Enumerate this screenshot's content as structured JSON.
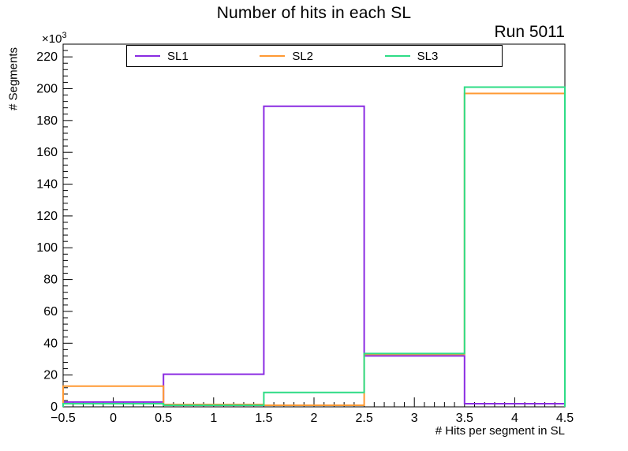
{
  "annotation": "Run 5011",
  "y_scale": {
    "prefix": "×10",
    "exponent": "3"
  },
  "chart_data": {
    "type": "histogram-step",
    "title": "Number of hits in each SL",
    "xlabel": "# Hits per segment in SL",
    "ylabel": "# Segments",
    "y_unit": "×10³ segments",
    "xlim": [
      -0.5,
      4.5
    ],
    "ylim": [
      0,
      228
    ],
    "grid": false,
    "legend_position": "top",
    "bin_edges": [
      -0.5,
      0.5,
      1.5,
      2.5,
      3.5,
      4.5
    ],
    "bin_centers": [
      0,
      1,
      2,
      3,
      4
    ],
    "x_ticks": [
      -0.5,
      0,
      0.5,
      1,
      1.5,
      2,
      2.5,
      3,
      3.5,
      4,
      4.5
    ],
    "y_ticks": [
      0,
      20,
      40,
      60,
      80,
      100,
      120,
      140,
      160,
      180,
      200,
      220
    ],
    "y_values_unit_multiplier": 1000,
    "series": [
      {
        "name": "SL1",
        "color": "#8a2be2",
        "values": [
          3,
          20.5,
          189,
          32,
          2
        ]
      },
      {
        "name": "SL2",
        "color": "#ff9933",
        "values": [
          13,
          1.5,
          1,
          33,
          197
        ]
      },
      {
        "name": "SL3",
        "color": "#2edc86",
        "values": [
          2,
          1,
          9,
          33.5,
          201
        ]
      }
    ]
  }
}
